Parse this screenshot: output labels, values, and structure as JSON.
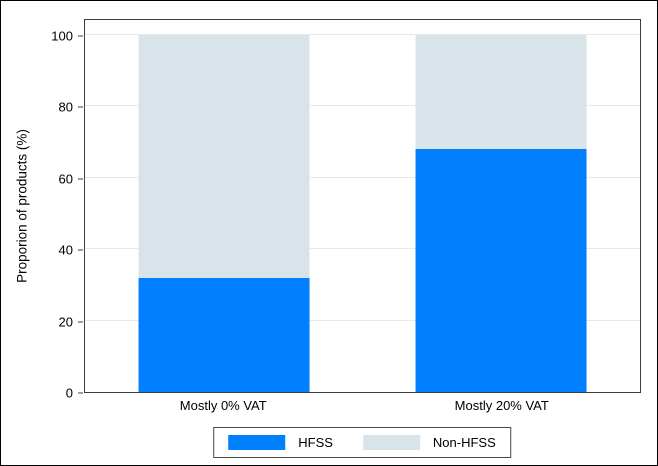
{
  "colors": {
    "hfss": "#0080ff",
    "non_hfss": "#d9e3ea",
    "grid": "#e8e8e8",
    "axis": "#3c3c3c",
    "background": "#ffffff"
  },
  "chart_data": {
    "type": "bar",
    "stacked": true,
    "title": "",
    "xlabel": "",
    "ylabel": "Proporion of products (%)",
    "categories": [
      "Mostly 0% VAT",
      "Mostly 20% VAT"
    ],
    "series": [
      {
        "name": "HFSS",
        "color_key": "hfss",
        "values": [
          32,
          68
        ]
      },
      {
        "name": "Non-HFSS",
        "color_key": "non_hfss",
        "values": [
          68,
          32
        ]
      }
    ],
    "ylim": [
      0,
      100
    ],
    "yticks": [
      0,
      20,
      40,
      60,
      80,
      100
    ],
    "grid": true,
    "legend": [
      "HFSS",
      "Non-HFSS"
    ],
    "legend_position": "bottom-center"
  }
}
